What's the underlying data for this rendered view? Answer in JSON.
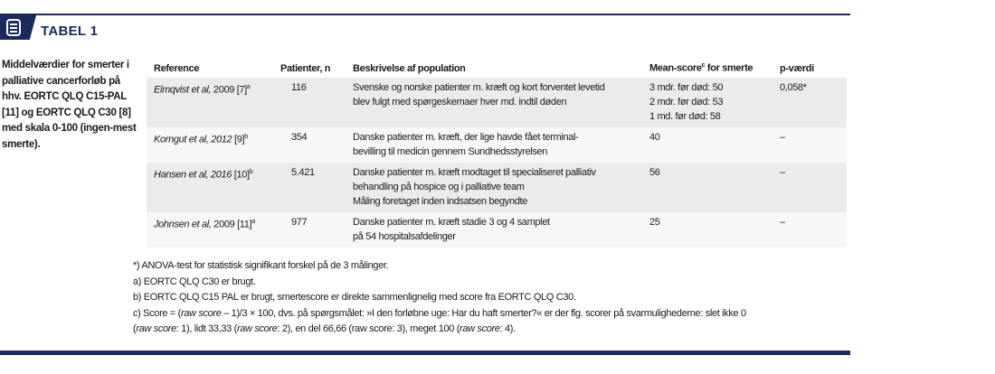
{
  "header": {
    "title": "TABEL 1",
    "icon": "document-list-icon",
    "accent": "#1c2a5a"
  },
  "caption": "Middelværdier for smerter i palliative cancerforløb på hhv. EORTC QLQ C15-PAL [11] og EORTC QLQ C30 [8] med skala 0-100 (ingen-mest smerte).",
  "table": {
    "headers": [
      "Reference",
      "Patienter, n",
      "Beskrivelse af population",
      "Mean-score",
      "c",
      " for smerte",
      "p-værdi"
    ],
    "rows": [
      {
        "ref_auth": "Elmqvist et al,",
        "ref_year": " 2009 [7]",
        "ref_sup": "a",
        "n": "116",
        "desc": [
          "Svenske og norske patienter m. kræft og kort forventet levetid",
          "blev fulgt med spørgeskemaer hver md. indtil døden"
        ],
        "score": [
          "3 mdr. før død: 50",
          "2 mdr. før død: 53",
          "1 md. før død: 58"
        ],
        "p": "0,058*"
      },
      {
        "ref_auth": "Korngut et al, 2012",
        "ref_year": " [9]",
        "ref_sup": "b",
        "n": "354",
        "desc": [
          "Danske patienter m. kræft, der lige havde fået terminal-",
          "bevilling til medicin gennem Sundhedsstyrelsen"
        ],
        "score": [
          "40"
        ],
        "p": "–"
      },
      {
        "ref_auth": "Hansen et al, 2016",
        "ref_year": " [10]",
        "ref_sup": "b",
        "n": "5.421",
        "desc": [
          "Danske patienter m. kræft modtaget til specialiseret palliativ",
          "behandling på hospice og i palliative team",
          "Måling foretaget inden indsatsen begyndte"
        ],
        "score": [
          "56"
        ],
        "p": "–"
      },
      {
        "ref_auth": "Johnsen et al,",
        "ref_year": " 2009 [11]",
        "ref_sup": "a",
        "n": "977",
        "desc": [
          "Danske patienter m. kræft stadie 3 og 4 samplet",
          "på 54 hospitalsafdelinger"
        ],
        "score": [
          "25"
        ],
        "p": "–"
      }
    ]
  },
  "notes": {
    "star": "*) ANOVA-test for statistisk signifikant forskel på de 3 målinger.",
    "a": "a) EORTC QLQ C30 er brugt.",
    "b": "b) EORTC QLQ C15 PAL er brugt, smertescore er direkte sammenlignelig med score fra EORTC QLQ C30.",
    "c": [
      "c) Score = (",
      "raw score",
      " – 1)/3 × 100, dvs. på spørgsmålet: »I den forløbne uge: Har du haft smerter?« er der flg. scorer på svarmulighederne: slet ikke 0",
      "(",
      "raw score",
      ": 1), lidt 33,33 (",
      "raw score",
      ": 2), en del 66,66 (raw score: 3), meget 100 (",
      "raw score",
      ": 4)."
    ]
  }
}
